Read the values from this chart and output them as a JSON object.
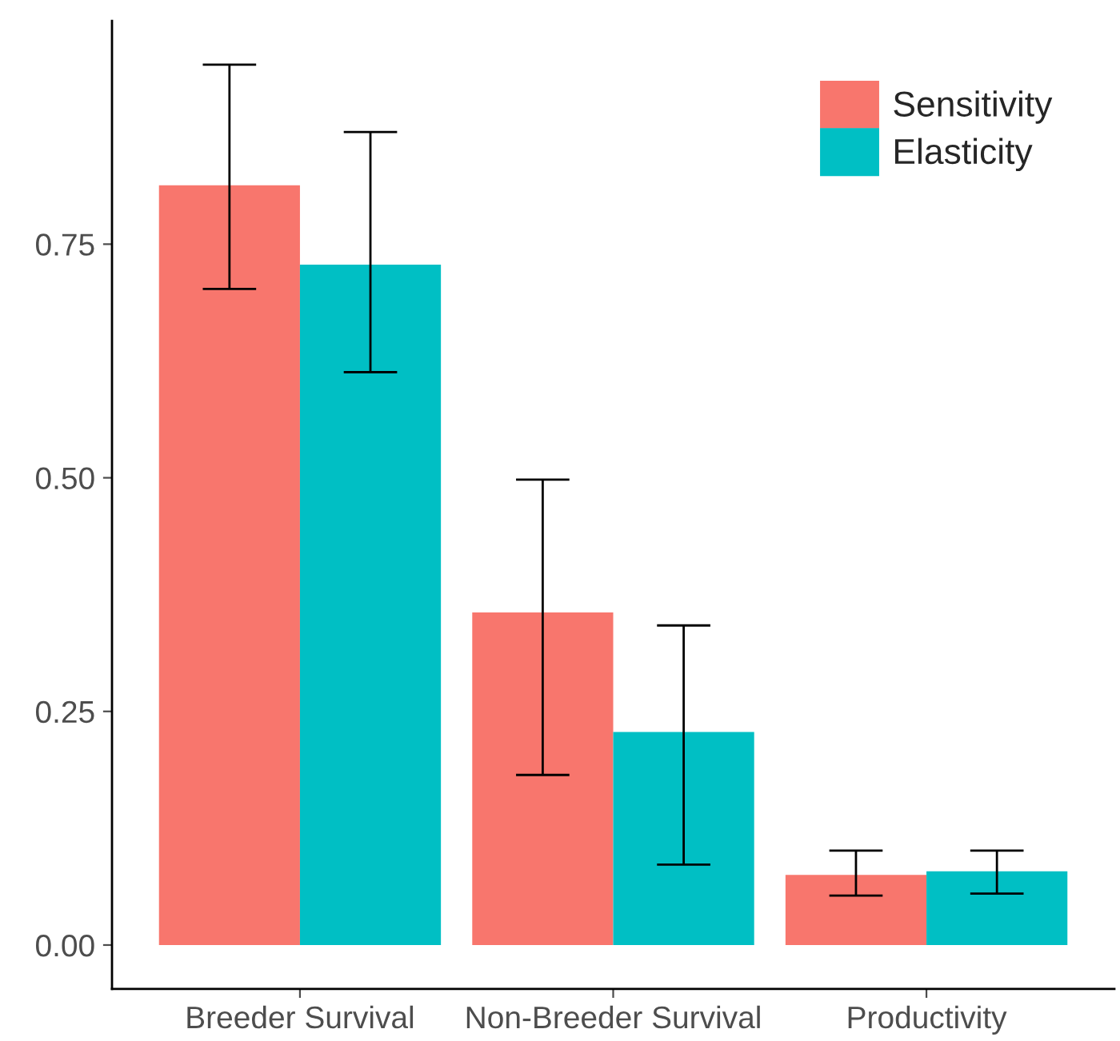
{
  "chart_data": {
    "type": "bar",
    "categories": [
      "Breeder Survival",
      "Non-Breeder Survival",
      "Productivity"
    ],
    "series": [
      {
        "name": "Sensitivity",
        "color": "#f8766d",
        "values": [
          0.813,
          0.356,
          0.075
        ],
        "errors": [
          [
            0.702,
            0.942
          ],
          [
            0.182,
            0.498
          ],
          [
            0.053,
            0.101
          ]
        ]
      },
      {
        "name": "Elasticity",
        "color": "#00bfc4",
        "values": [
          0.728,
          0.228,
          0.079
        ],
        "errors": [
          [
            0.613,
            0.87
          ],
          [
            0.086,
            0.342
          ],
          [
            0.055,
            0.101
          ]
        ]
      }
    ],
    "ylim": [
      -0.047,
      0.989
    ],
    "yticks": [
      {
        "value": 0,
        "label": "0.00"
      },
      {
        "value": 0.25,
        "label": "0.25"
      },
      {
        "value": 0.5,
        "label": "0.50"
      },
      {
        "value": 0.75,
        "label": "0.75"
      }
    ],
    "grid": false,
    "legend": "top right"
  }
}
